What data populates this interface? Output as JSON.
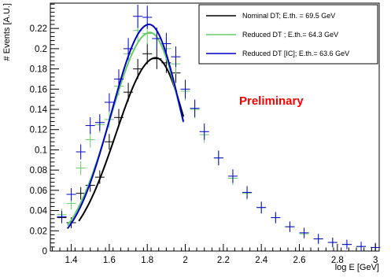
{
  "chart_data": {
    "type": "scatter",
    "title": "",
    "xlabel": "log E [GeV]",
    "ylabel": "# Events [A.U.]",
    "xlim": [
      1.29,
      3.02
    ],
    "ylim": [
      0,
      0.245
    ],
    "xticks": [
      1.4,
      1.6,
      1.8,
      2,
      2.2,
      2.4,
      2.6,
      2.8,
      3
    ],
    "xtick_labels": [
      "1.4",
      "1.6",
      "1.8",
      "2",
      "2.2",
      "2.4",
      "2.6",
      "2.8",
      "3"
    ],
    "yticks": [
      0,
      0.02,
      0.04,
      0.06,
      0.08,
      0.1,
      0.12,
      0.14,
      0.16,
      0.18,
      0.2,
      0.22
    ],
    "ytick_labels": [
      "0",
      "0.02",
      "0.04",
      "0.06",
      "0.08",
      "0.1",
      "0.12",
      "0.14",
      "0.16",
      "0.18",
      "0.2",
      "0.22"
    ],
    "grid": false,
    "legend_position": "top-right",
    "annotation": {
      "text": "Preliminary",
      "color": "#ff0000"
    },
    "series": [
      {
        "name": "Nominal DT; E.th. = 69.5 GeV",
        "color": "#000000",
        "points": [
          {
            "x": 1.35,
            "y": 0.033
          },
          {
            "x": 1.4,
            "y": 0.028
          },
          {
            "x": 1.45,
            "y": 0.057
          },
          {
            "x": 1.5,
            "y": 0.065
          },
          {
            "x": 1.55,
            "y": 0.073
          },
          {
            "x": 1.6,
            "y": 0.108
          },
          {
            "x": 1.65,
            "y": 0.132
          },
          {
            "x": 1.7,
            "y": 0.157
          },
          {
            "x": 1.75,
            "y": 0.18
          },
          {
            "x": 1.8,
            "y": 0.195
          },
          {
            "x": 1.85,
            "y": 0.19
          },
          {
            "x": 1.9,
            "y": 0.186
          },
          {
            "x": 1.95,
            "y": 0.176
          }
        ],
        "fit": {
          "x_start": 1.44,
          "x_end": 1.99,
          "peak_x": 1.845,
          "peak_y": 0.191,
          "sigma_left": 0.21,
          "sigma_right": 0.17
        }
      },
      {
        "name": "Reduced DT ; E.th.= 64.3 GeV",
        "color": "#66cc66",
        "points": [
          {
            "x": 1.35,
            "y": 0.036
          },
          {
            "x": 1.4,
            "y": 0.047
          },
          {
            "x": 1.45,
            "y": 0.082
          },
          {
            "x": 1.5,
            "y": 0.11
          },
          {
            "x": 1.55,
            "y": 0.125
          },
          {
            "x": 1.6,
            "y": 0.13
          },
          {
            "x": 1.65,
            "y": 0.163
          },
          {
            "x": 1.7,
            "y": 0.195
          },
          {
            "x": 1.75,
            "y": 0.218
          },
          {
            "x": 1.8,
            "y": 0.215
          },
          {
            "x": 1.85,
            "y": 0.21
          },
          {
            "x": 1.9,
            "y": 0.2
          },
          {
            "x": 1.95,
            "y": 0.185
          },
          {
            "x": 2.0,
            "y": 0.158
          },
          {
            "x": 2.05,
            "y": 0.14
          },
          {
            "x": 2.1,
            "y": 0.115
          },
          {
            "x": 2.175,
            "y": 0.092
          },
          {
            "x": 2.25,
            "y": 0.072
          },
          {
            "x": 2.325,
            "y": 0.057
          },
          {
            "x": 2.4,
            "y": 0.043
          },
          {
            "x": 2.475,
            "y": 0.033
          },
          {
            "x": 2.55,
            "y": 0.024
          },
          {
            "x": 2.625,
            "y": 0.017
          },
          {
            "x": 2.7,
            "y": 0.012
          },
          {
            "x": 2.775,
            "y": 0.0085
          },
          {
            "x": 2.85,
            "y": 0.0065
          },
          {
            "x": 2.925,
            "y": 0.0045
          },
          {
            "x": 3.0,
            "y": 0.0035
          }
        ],
        "fit": {
          "x_start": 1.38,
          "x_end": 1.99,
          "peak_x": 1.815,
          "peak_y": 0.216,
          "sigma_left": 0.21,
          "sigma_right": 0.17
        }
      },
      {
        "name": "Reduced DT [IC]; E.th.= 63.6 GeV",
        "color": "#0000cc",
        "points": [
          {
            "x": 1.35,
            "y": 0.034
          },
          {
            "x": 1.4,
            "y": 0.056
          },
          {
            "x": 1.45,
            "y": 0.098
          },
          {
            "x": 1.5,
            "y": 0.124
          },
          {
            "x": 1.55,
            "y": 0.127
          },
          {
            "x": 1.6,
            "y": 0.147
          },
          {
            "x": 1.65,
            "y": 0.17
          },
          {
            "x": 1.7,
            "y": 0.2
          },
          {
            "x": 1.75,
            "y": 0.232
          },
          {
            "x": 1.8,
            "y": 0.231
          },
          {
            "x": 1.85,
            "y": 0.21
          },
          {
            "x": 1.9,
            "y": 0.205
          },
          {
            "x": 1.95,
            "y": 0.192
          },
          {
            "x": 2.0,
            "y": 0.16
          },
          {
            "x": 2.05,
            "y": 0.141
          },
          {
            "x": 2.1,
            "y": 0.118
          },
          {
            "x": 2.175,
            "y": 0.092
          },
          {
            "x": 2.25,
            "y": 0.074
          },
          {
            "x": 2.325,
            "y": 0.058
          },
          {
            "x": 2.4,
            "y": 0.043
          },
          {
            "x": 2.475,
            "y": 0.033
          },
          {
            "x": 2.55,
            "y": 0.024
          },
          {
            "x": 2.625,
            "y": 0.018
          },
          {
            "x": 2.7,
            "y": 0.012
          },
          {
            "x": 2.775,
            "y": 0.0085
          },
          {
            "x": 2.85,
            "y": 0.0065
          },
          {
            "x": 2.925,
            "y": 0.0045
          },
          {
            "x": 3.0,
            "y": 0.0035
          }
        ],
        "fit": {
          "x_start": 1.38,
          "x_end": 1.99,
          "peak_x": 1.81,
          "peak_y": 0.224,
          "sigma_left": 0.2,
          "sigma_right": 0.17
        }
      }
    ]
  }
}
